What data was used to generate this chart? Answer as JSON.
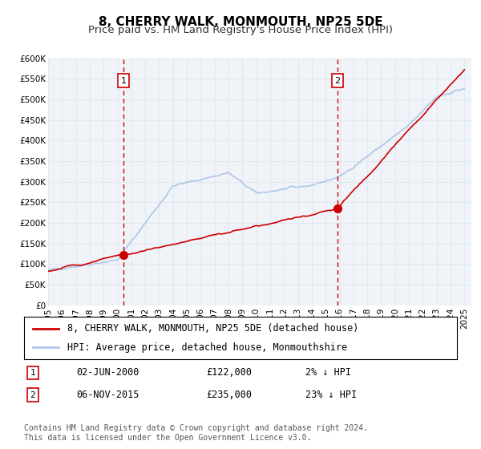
{
  "title": "8, CHERRY WALK, MONMOUTH, NP25 5DE",
  "subtitle": "Price paid vs. HM Land Registry's House Price Index (HPI)",
  "xlabel": "",
  "ylabel": "",
  "ylim": [
    0,
    600000
  ],
  "yticks": [
    0,
    50000,
    100000,
    150000,
    200000,
    250000,
    300000,
    350000,
    400000,
    450000,
    500000,
    550000,
    600000
  ],
  "ytick_labels": [
    "£0",
    "£50K",
    "£100K",
    "£150K",
    "£200K",
    "£250K",
    "£300K",
    "£350K",
    "£400K",
    "£450K",
    "£500K",
    "£550K",
    "£600K"
  ],
  "xlim_start": 1995.0,
  "xlim_end": 2025.5,
  "xticks": [
    1995,
    1996,
    1997,
    1998,
    1999,
    2000,
    2001,
    2002,
    2003,
    2004,
    2005,
    2006,
    2007,
    2008,
    2009,
    2010,
    2011,
    2012,
    2013,
    2014,
    2015,
    2016,
    2017,
    2018,
    2019,
    2020,
    2021,
    2022,
    2023,
    2024,
    2025
  ],
  "hpi_color": "#aec6e8",
  "property_color": "#cc0000",
  "grid_color": "#e0e8f0",
  "background_color": "#f0f4f8",
  "marker1_x": 2000.42,
  "marker1_y": 122000,
  "marker2_x": 2015.84,
  "marker2_y": 235000,
  "vline1_x": 2000.42,
  "vline2_x": 2015.84,
  "legend_property": "8, CHERRY WALK, MONMOUTH, NP25 5DE (detached house)",
  "legend_hpi": "HPI: Average price, detached house, Monmouthshire",
  "annotation1_label": "1",
  "annotation2_label": "2",
  "table_row1": [
    "1",
    "02-JUN-2000",
    "£122,000",
    "2% ↓ HPI"
  ],
  "table_row2": [
    "2",
    "06-NOV-2015",
    "£235,000",
    "23% ↓ HPI"
  ],
  "footer": "Contains HM Land Registry data © Crown copyright and database right 2024.\nThis data is licensed under the Open Government Licence v3.0.",
  "title_fontsize": 11,
  "subtitle_fontsize": 9.5,
  "tick_fontsize": 7.5,
  "legend_fontsize": 8.5,
  "table_fontsize": 8.5,
  "footer_fontsize": 7
}
